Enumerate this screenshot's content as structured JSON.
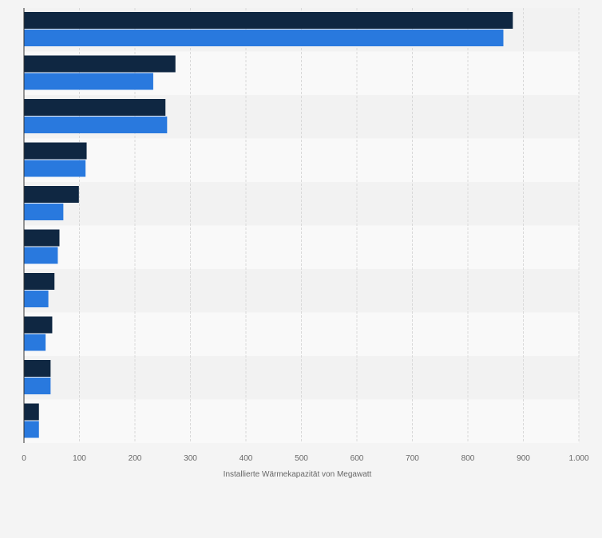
{
  "chart_data": {
    "type": "bar",
    "orientation": "horizontal",
    "xlabel": "Installierte Wärmekapazität von Megawatt",
    "xlim": [
      0,
      1000
    ],
    "x_ticks": [
      0,
      100,
      200,
      300,
      400,
      500,
      600,
      700,
      800,
      900,
      1000
    ],
    "x_tick_labels": [
      "0",
      "100",
      "200",
      "300",
      "400",
      "500",
      "600",
      "700",
      "800",
      "900",
      "1.000"
    ],
    "grid": true,
    "legend": "none",
    "categories": [
      "",
      "",
      "",
      "",
      "",
      "",
      "",
      "",
      "",
      ""
    ],
    "series": [
      {
        "color": "#0f2742",
        "values": [
          881,
          273,
          255,
          113,
          99,
          64,
          55,
          51,
          48,
          27
        ]
      },
      {
        "color": "#2979de",
        "values": [
          864,
          233,
          258,
          111,
          71,
          61,
          44,
          39,
          48,
          27
        ]
      }
    ]
  },
  "colors": {
    "background": "#f4f4f4",
    "band_light": "#f9f9f9",
    "band_dark": "#f2f2f2",
    "axis": "#333333",
    "grid": "#d9d9d9",
    "tick_text": "#666666"
  }
}
